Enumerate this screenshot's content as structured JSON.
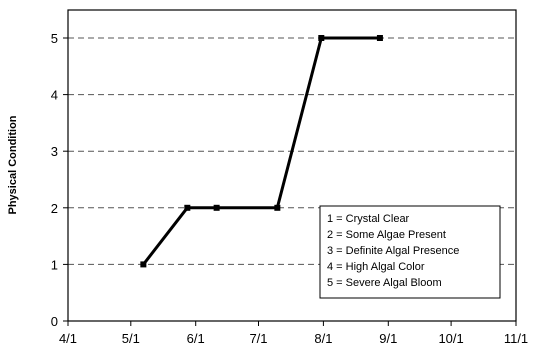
{
  "chart_data": {
    "type": "line",
    "title": "",
    "xlabel": "",
    "ylabel": "Physical Condition",
    "x_ticks": [
      "4/1",
      "5/1",
      "6/1",
      "7/1",
      "8/1",
      "9/1",
      "10/1",
      "11/1"
    ],
    "y_ticks": [
      "0",
      "1",
      "2",
      "3",
      "4",
      "5"
    ],
    "ylim": [
      0,
      5
    ],
    "grid": "horizontal dashed",
    "legend_placement": "lower-right",
    "series": [
      {
        "x": [
          "5/7",
          "5/28",
          "6/11",
          "7/10",
          "7/31",
          "8/28"
        ],
        "y": [
          1,
          2,
          2,
          2,
          5,
          5
        ]
      }
    ],
    "legend": [
      "1 = Crystal Clear",
      "2 = Some Algae Present",
      "3 = Definite Algal Presence",
      "4 = High Algal Color",
      "5 = Severe Algal Bloom"
    ],
    "colors": {
      "line": "#000000",
      "grid": "#555555"
    }
  }
}
